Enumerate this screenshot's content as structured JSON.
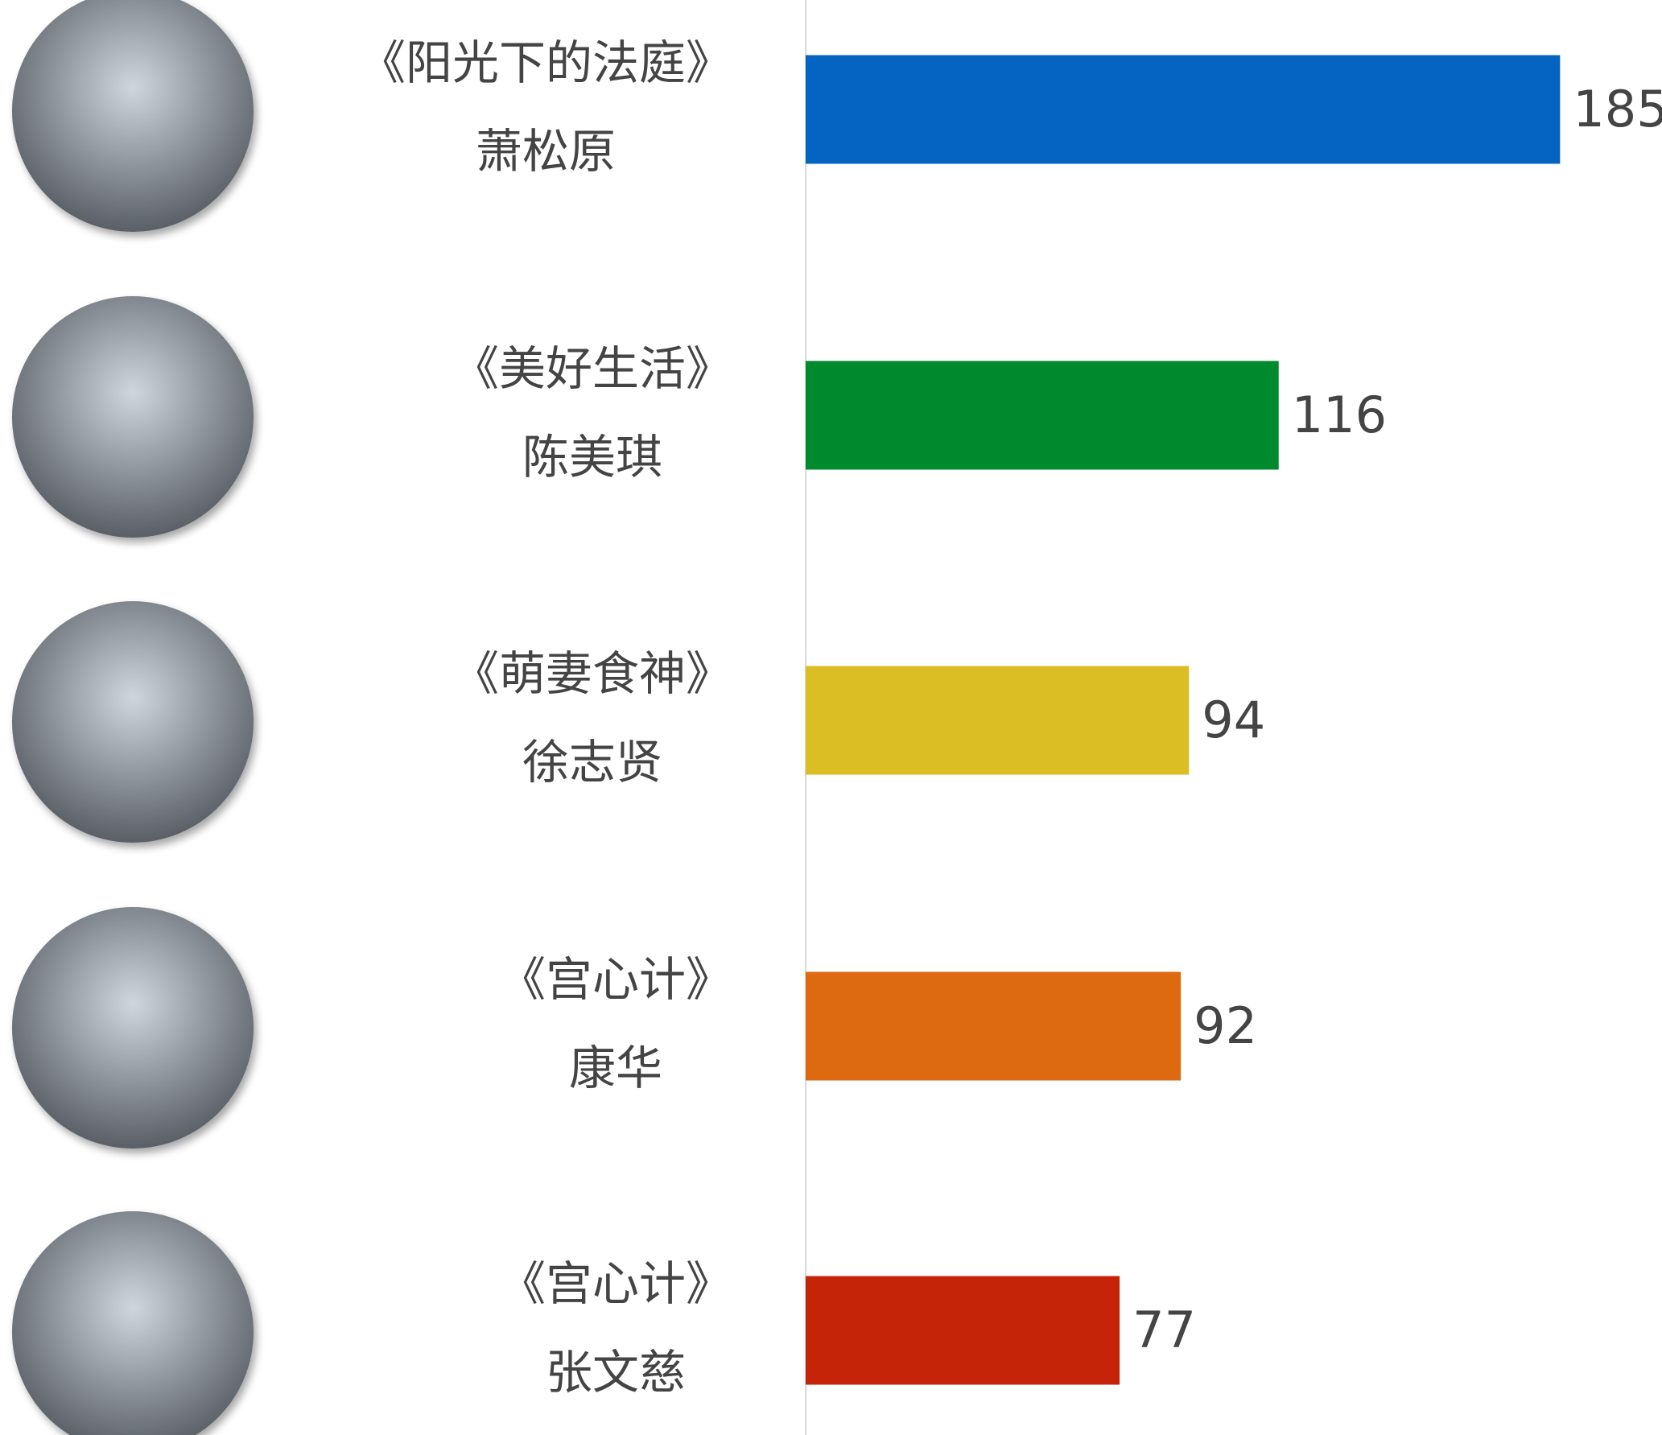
{
  "chart_data": {
    "type": "bar",
    "orientation": "horizontal",
    "categories": [
      "《阳光下的法庭》",
      "《美好生活》",
      "《萌妻食神》",
      "《宫心计》",
      "《宫心计》"
    ],
    "sublabels": [
      "萧松原",
      "陈美琪",
      "徐志贤",
      "康华",
      "张文慈"
    ],
    "values": [
      185,
      116,
      94,
      92,
      77
    ],
    "colors": [
      "#0563c1",
      "#008a2e",
      "#dbbe24",
      "#dd6a10",
      "#c62408"
    ],
    "xlim": [
      0,
      210
    ]
  }
}
